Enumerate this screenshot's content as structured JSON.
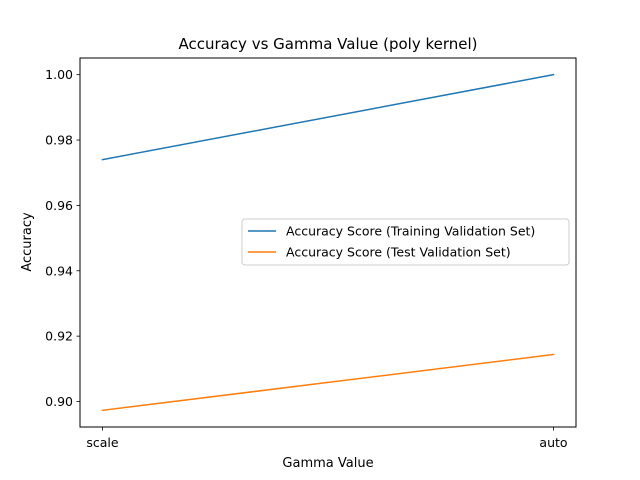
{
  "chart_data": {
    "type": "line",
    "title": "Accuracy vs Gamma Value (poly kernel)",
    "xlabel": "Gamma Value",
    "ylabel": "Accuracy",
    "categories": [
      "scale",
      "auto"
    ],
    "ylim": [
      0.8922,
      1.0051
    ],
    "yticks": [
      0.9,
      0.92,
      0.94,
      0.96,
      0.98,
      1.0
    ],
    "ytick_labels": [
      "0.90",
      "0.92",
      "0.94",
      "0.96",
      "0.98",
      "1.00"
    ],
    "grid": false,
    "legend_position": "center-right",
    "series": [
      {
        "name": "Accuracy Score (Training Validation Set)",
        "values": [
          0.974,
          1.0
        ],
        "color": "#1f77b4"
      },
      {
        "name": "Accuracy Score (Test Validation Set)",
        "values": [
          0.8973,
          0.9144
        ],
        "color": "#ff7f0e"
      }
    ]
  }
}
